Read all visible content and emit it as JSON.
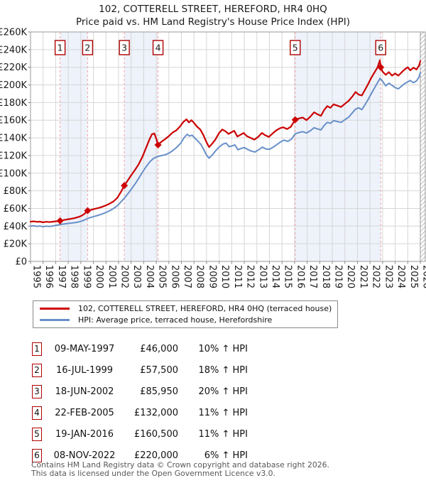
{
  "title": {
    "line1": "102, COTTERELL STREET, HEREFORD, HR4 0HQ",
    "line2": "Price paid vs. HM Land Registry's House Price Index (HPI)"
  },
  "legend": [
    {
      "label": "102, COTTERELL STREET, HEREFORD, HR4 0HQ (terraced house)",
      "color": "#cc0000"
    },
    {
      "label": "HPI: Average price, terraced house, Herefordshire",
      "color": "#6890c8"
    }
  ],
  "chart_data": {
    "type": "line",
    "title": "102, COTTERELL STREET, HEREFORD, HR4 0HQ",
    "subtitle": "Price paid vs. HM Land Registry's House Price Index (HPI)",
    "unit": "series values are GBP thousands",
    "x_range": [
      1995,
      2026
    ],
    "x_tick_years": [
      1995,
      1996,
      1997,
      1998,
      1999,
      2000,
      2001,
      2002,
      2003,
      2004,
      2005,
      2006,
      2007,
      2008,
      2009,
      2010,
      2011,
      2012,
      2013,
      2014,
      2015,
      2016,
      2017,
      2018,
      2019,
      2020,
      2021,
      2022,
      2023,
      2024,
      2025,
      2026
    ],
    "y_axis": {
      "min": 0,
      "max": 260000,
      "step": 20000,
      "tick_labels": [
        "£0",
        "£20K",
        "£40K",
        "£60K",
        "£80K",
        "£100K",
        "£120K",
        "£140K",
        "£160K",
        "£180K",
        "£200K",
        "£220K",
        "£240K",
        "£260K"
      ]
    },
    "grid": true,
    "band_color": "#edf2fb",
    "dash_color": "#f2a0a0",
    "ownership_bands": [
      [
        1997.35,
        1999.54
      ],
      [
        2002.46,
        2005.14
      ],
      [
        2016.05,
        2022.85
      ]
    ],
    "sales": [
      {
        "n": "1",
        "year": 1997.35,
        "price_k": 46
      },
      {
        "n": "2",
        "year": 1999.54,
        "price_k": 57.5
      },
      {
        "n": "3",
        "year": 2002.46,
        "price_k": 85.95
      },
      {
        "n": "4",
        "year": 2005.14,
        "price_k": 132
      },
      {
        "n": "5",
        "year": 2016.05,
        "price_k": 160.5
      },
      {
        "n": "6",
        "year": 2022.85,
        "price_k": 220
      }
    ],
    "series": [
      {
        "name": "102, COTTERELL STREET, HEREFORD, HR4 0HQ (terraced house)",
        "color": "#cc0000",
        "points": [
          [
            1995.0,
            45
          ],
          [
            1995.25,
            45.4
          ],
          [
            1995.5,
            44.8
          ],
          [
            1995.75,
            45.1
          ],
          [
            1996.0,
            44.3
          ],
          [
            1996.25,
            44.9
          ],
          [
            1996.5,
            44.5
          ],
          [
            1996.75,
            45.0
          ],
          [
            1997.0,
            45.4
          ],
          [
            1997.35,
            46
          ],
          [
            1997.6,
            46.8
          ],
          [
            1997.9,
            47.6
          ],
          [
            1998.2,
            48.2
          ],
          [
            1998.5,
            49.0
          ],
          [
            1998.8,
            50.2
          ],
          [
            1999.1,
            52.0
          ],
          [
            1999.3,
            54.0
          ],
          [
            1999.54,
            57.5
          ],
          [
            1999.8,
            58.3
          ],
          [
            2000.1,
            59.5
          ],
          [
            2000.4,
            60.5
          ],
          [
            2000.7,
            61.8
          ],
          [
            2001.0,
            63.5
          ],
          [
            2001.3,
            65.5
          ],
          [
            2001.6,
            68.0
          ],
          [
            2001.9,
            72.0
          ],
          [
            2002.2,
            79.0
          ],
          [
            2002.46,
            86.0
          ],
          [
            2002.7,
            91.0
          ],
          [
            2003.0,
            97.5
          ],
          [
            2003.3,
            103.5
          ],
          [
            2003.6,
            110.0
          ],
          [
            2003.9,
            118.5
          ],
          [
            2004.2,
            129.0
          ],
          [
            2004.45,
            138.0
          ],
          [
            2004.65,
            144.0
          ],
          [
            2004.85,
            145.0
          ],
          [
            2005.0,
            139.0
          ],
          [
            2005.14,
            132.0
          ],
          [
            2005.4,
            135.5
          ],
          [
            2005.7,
            138.5
          ],
          [
            2006.0,
            142.0
          ],
          [
            2006.3,
            146.0
          ],
          [
            2006.6,
            148.5
          ],
          [
            2006.9,
            153.0
          ],
          [
            2007.15,
            158.0
          ],
          [
            2007.4,
            161.0
          ],
          [
            2007.6,
            157.5
          ],
          [
            2007.8,
            160.0
          ],
          [
            2008.0,
            157.0
          ],
          [
            2008.25,
            152.5
          ],
          [
            2008.5,
            149.5
          ],
          [
            2008.75,
            143.0
          ],
          [
            2009.0,
            135.0
          ],
          [
            2009.2,
            129.5
          ],
          [
            2009.45,
            133.5
          ],
          [
            2009.7,
            138.0
          ],
          [
            2010.0,
            145.5
          ],
          [
            2010.25,
            149.5
          ],
          [
            2010.5,
            147.5
          ],
          [
            2010.75,
            144.5
          ],
          [
            2011.0,
            146.5
          ],
          [
            2011.2,
            148.0
          ],
          [
            2011.45,
            141.5
          ],
          [
            2011.7,
            143.5
          ],
          [
            2011.95,
            145.5
          ],
          [
            2012.2,
            142.0
          ],
          [
            2012.5,
            140.0
          ],
          [
            2012.8,
            138.0
          ],
          [
            2013.1,
            141.0
          ],
          [
            2013.4,
            145.5
          ],
          [
            2013.65,
            143.0
          ],
          [
            2013.95,
            141.0
          ],
          [
            2014.25,
            145.0
          ],
          [
            2014.55,
            148.5
          ],
          [
            2014.85,
            151.0
          ],
          [
            2015.1,
            152.0
          ],
          [
            2015.4,
            150.0
          ],
          [
            2015.7,
            152.5
          ],
          [
            2016.05,
            160.5
          ],
          [
            2016.35,
            162.0
          ],
          [
            2016.65,
            163.0
          ],
          [
            2016.95,
            160.0
          ],
          [
            2017.25,
            164.0
          ],
          [
            2017.55,
            169.0
          ],
          [
            2017.85,
            166.5
          ],
          [
            2018.1,
            165.0
          ],
          [
            2018.35,
            171.5
          ],
          [
            2018.6,
            176.0
          ],
          [
            2018.85,
            174.0
          ],
          [
            2019.1,
            178.0
          ],
          [
            2019.4,
            176.5
          ],
          [
            2019.7,
            175.0
          ],
          [
            2020.0,
            178.5
          ],
          [
            2020.3,
            182.0
          ],
          [
            2020.6,
            187.0
          ],
          [
            2020.85,
            192.0
          ],
          [
            2021.1,
            189.0
          ],
          [
            2021.35,
            188.0
          ],
          [
            2021.6,
            194.5
          ],
          [
            2021.85,
            201.0
          ],
          [
            2022.1,
            208.0
          ],
          [
            2022.35,
            214.0
          ],
          [
            2022.6,
            220.0
          ],
          [
            2022.78,
            228.0
          ],
          [
            2022.85,
            220.0
          ],
          [
            2023.0,
            215.0
          ],
          [
            2023.25,
            211.5
          ],
          [
            2023.5,
            214.5
          ],
          [
            2023.75,
            210.5
          ],
          [
            2024.0,
            213.0
          ],
          [
            2024.25,
            210.5
          ],
          [
            2024.5,
            214.0
          ],
          [
            2024.75,
            217.5
          ],
          [
            2025.0,
            220.0
          ],
          [
            2025.2,
            216.5
          ],
          [
            2025.45,
            219.5
          ],
          [
            2025.7,
            217.5
          ],
          [
            2025.9,
            222.0
          ],
          [
            2026.0,
            227.0
          ]
        ]
      },
      {
        "name": "HPI: Average price, terraced house, Herefordshire",
        "color": "#6890c8",
        "points": [
          [
            1995.0,
            40
          ],
          [
            1995.25,
            40.3
          ],
          [
            1995.5,
            39.8
          ],
          [
            1995.75,
            40.1
          ],
          [
            1996.0,
            39.3
          ],
          [
            1996.25,
            39.9
          ],
          [
            1996.5,
            39.6
          ],
          [
            1996.75,
            40.1
          ],
          [
            1997.0,
            40.7
          ],
          [
            1997.35,
            41.8
          ],
          [
            1997.6,
            42.3
          ],
          [
            1997.9,
            42.9
          ],
          [
            1998.2,
            43.4
          ],
          [
            1998.5,
            43.9
          ],
          [
            1998.8,
            44.6
          ],
          [
            1999.1,
            45.8
          ],
          [
            1999.3,
            47.0
          ],
          [
            1999.54,
            48.7
          ],
          [
            1999.8,
            49.8
          ],
          [
            2000.1,
            51.0
          ],
          [
            2000.4,
            52.3
          ],
          [
            2000.7,
            53.8
          ],
          [
            2001.0,
            55.5
          ],
          [
            2001.3,
            57.5
          ],
          [
            2001.6,
            60.0
          ],
          [
            2001.9,
            63.0
          ],
          [
            2002.2,
            67.5
          ],
          [
            2002.46,
            71.6
          ],
          [
            2002.7,
            76.0
          ],
          [
            2003.0,
            81.5
          ],
          [
            2003.3,
            87.5
          ],
          [
            2003.6,
            94.0
          ],
          [
            2003.9,
            101.0
          ],
          [
            2004.2,
            107.5
          ],
          [
            2004.5,
            113.0
          ],
          [
            2004.8,
            117.0
          ],
          [
            2005.14,
            119.0
          ],
          [
            2005.45,
            120.0
          ],
          [
            2005.75,
            121.0
          ],
          [
            2006.05,
            123.0
          ],
          [
            2006.35,
            126.0
          ],
          [
            2006.65,
            129.5
          ],
          [
            2006.95,
            134.0
          ],
          [
            2007.2,
            140.0
          ],
          [
            2007.45,
            144.0
          ],
          [
            2007.65,
            142.0
          ],
          [
            2007.85,
            143.0
          ],
          [
            2008.05,
            140.0
          ],
          [
            2008.3,
            136.5
          ],
          [
            2008.55,
            132.5
          ],
          [
            2008.8,
            126.0
          ],
          [
            2009.0,
            120.5
          ],
          [
            2009.2,
            117.0
          ],
          [
            2009.45,
            120.5
          ],
          [
            2009.7,
            125.0
          ],
          [
            2010.0,
            129.5
          ],
          [
            2010.3,
            133.0
          ],
          [
            2010.55,
            134.0
          ],
          [
            2010.8,
            130.0
          ],
          [
            2011.05,
            131.0
          ],
          [
            2011.25,
            132.0
          ],
          [
            2011.5,
            126.5
          ],
          [
            2011.75,
            128.0
          ],
          [
            2012.0,
            129.0
          ],
          [
            2012.25,
            127.0
          ],
          [
            2012.55,
            125.0
          ],
          [
            2012.85,
            124.0
          ],
          [
            2013.15,
            126.5
          ],
          [
            2013.45,
            129.5
          ],
          [
            2013.7,
            127.5
          ],
          [
            2014.0,
            127.0
          ],
          [
            2014.3,
            129.5
          ],
          [
            2014.6,
            132.5
          ],
          [
            2014.9,
            135.5
          ],
          [
            2015.15,
            137.5
          ],
          [
            2015.45,
            136.0
          ],
          [
            2015.75,
            138.5
          ],
          [
            2016.05,
            144.6
          ],
          [
            2016.35,
            146.0
          ],
          [
            2016.65,
            147.0
          ],
          [
            2016.95,
            145.5
          ],
          [
            2017.25,
            148.0
          ],
          [
            2017.55,
            151.5
          ],
          [
            2017.85,
            150.0
          ],
          [
            2018.1,
            149.0
          ],
          [
            2018.35,
            154.0
          ],
          [
            2018.6,
            157.5
          ],
          [
            2018.85,
            156.5
          ],
          [
            2019.1,
            159.5
          ],
          [
            2019.4,
            158.5
          ],
          [
            2019.7,
            157.5
          ],
          [
            2020.0,
            160.5
          ],
          [
            2020.3,
            163.5
          ],
          [
            2020.6,
            168.5
          ],
          [
            2020.85,
            172.5
          ],
          [
            2021.1,
            174.0
          ],
          [
            2021.35,
            172.0
          ],
          [
            2021.6,
            177.5
          ],
          [
            2021.85,
            183.5
          ],
          [
            2022.1,
            190.0
          ],
          [
            2022.35,
            196.5
          ],
          [
            2022.6,
            202.5
          ],
          [
            2022.8,
            207.5
          ],
          [
            2023.0,
            204.0
          ],
          [
            2023.25,
            199.0
          ],
          [
            2023.5,
            202.0
          ],
          [
            2023.75,
            199.5
          ],
          [
            2024.0,
            197.0
          ],
          [
            2024.25,
            195.5
          ],
          [
            2024.5,
            198.5
          ],
          [
            2024.75,
            201.5
          ],
          [
            2025.0,
            203.5
          ],
          [
            2025.2,
            205.0
          ],
          [
            2025.45,
            202.5
          ],
          [
            2025.7,
            204.5
          ],
          [
            2025.9,
            209.0
          ],
          [
            2026.0,
            214.0
          ]
        ]
      }
    ]
  },
  "table": {
    "rows": [
      {
        "n": "1",
        "date": "09-MAY-1997",
        "price": "£46,000",
        "pct": "10% ↑ HPI"
      },
      {
        "n": "2",
        "date": "16-JUL-1999",
        "price": "£57,500",
        "pct": "18% ↑ HPI"
      },
      {
        "n": "3",
        "date": "18-JUN-2002",
        "price": "£85,950",
        "pct": "20% ↑ HPI"
      },
      {
        "n": "4",
        "date": "22-FEB-2005",
        "price": "£132,000",
        "pct": "11% ↑ HPI"
      },
      {
        "n": "5",
        "date": "19-JAN-2016",
        "price": "£160,500",
        "pct": "11% ↑ HPI"
      },
      {
        "n": "6",
        "date": "08-NOV-2022",
        "price": "£220,000",
        "pct": "6% ↑ HPI"
      }
    ]
  },
  "footer": {
    "line1": "Contains HM Land Registry data © Crown copyright and database right 2026.",
    "line2": "This data is licensed under the Open Government Licence v3.0."
  }
}
